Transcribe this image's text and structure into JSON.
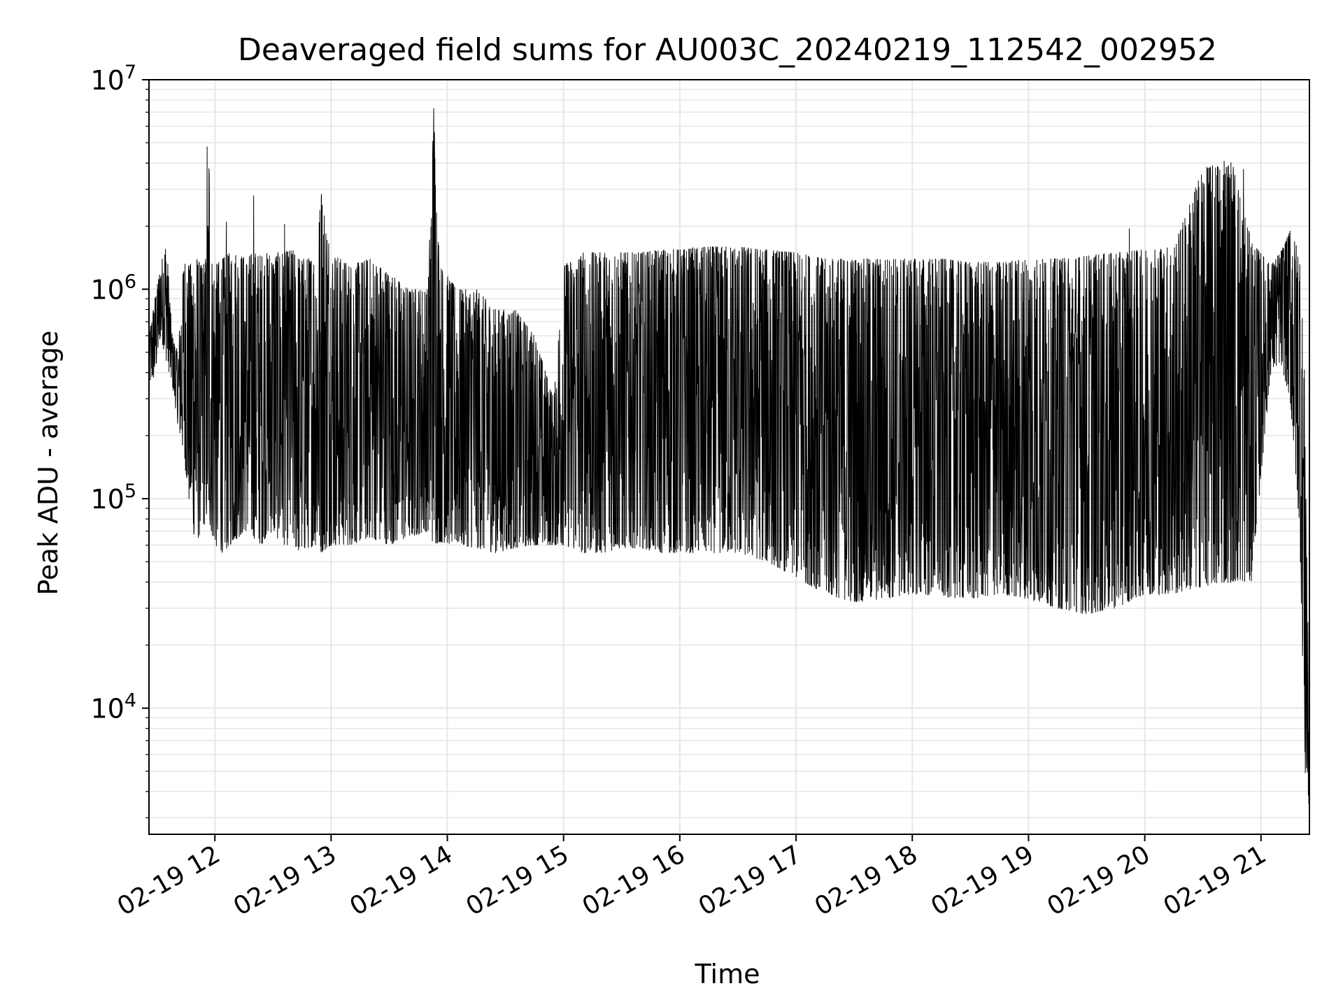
{
  "chart_data": {
    "type": "line",
    "title": "Deaveraged field sums for AU003C_20240219_112542_002952",
    "xlabel": "Time",
    "ylabel": "Peak ADU - average",
    "yscale": "log",
    "ylim": [
      2500,
      10000000
    ],
    "xlim": [
      "2024-02-19 11:26",
      "2024-02-19 21:25"
    ],
    "x_ticks": [
      {
        "t": "2024-02-19 12:00",
        "label": "02-19 12"
      },
      {
        "t": "2024-02-19 13:00",
        "label": "02-19 13"
      },
      {
        "t": "2024-02-19 14:00",
        "label": "02-19 14"
      },
      {
        "t": "2024-02-19 15:00",
        "label": "02-19 15"
      },
      {
        "t": "2024-02-19 16:00",
        "label": "02-19 16"
      },
      {
        "t": "2024-02-19 17:00",
        "label": "02-19 17"
      },
      {
        "t": "2024-02-19 18:00",
        "label": "02-19 18"
      },
      {
        "t": "2024-02-19 19:00",
        "label": "02-19 19"
      },
      {
        "t": "2024-02-19 20:00",
        "label": "02-19 20"
      },
      {
        "t": "2024-02-19 21:00",
        "label": "02-19 21"
      }
    ],
    "y_ticks": [
      {
        "v": 10000,
        "base": "10",
        "exp": "4"
      },
      {
        "v": 100000,
        "base": "10",
        "exp": "5"
      },
      {
        "v": 1000000,
        "base": "10",
        "exp": "6"
      },
      {
        "v": 10000000,
        "base": "10",
        "exp": "7"
      }
    ],
    "grid": true,
    "line_color": "#000000",
    "grid_color": "#e6e6e6",
    "series": [
      {
        "x": [
          "2024-02-19 11:26",
          "2024-02-19 11:29",
          "2024-02-19 11:32",
          "2024-02-19 11:35",
          "2024-02-19 11:38",
          "2024-02-19 11:41",
          "2024-02-19 11:44",
          "2024-02-19 11:47",
          "2024-02-19 11:50",
          "2024-02-19 11:53",
          "2024-02-19 11:56",
          "2024-02-19 11:57",
          "2024-02-19 11:58",
          "2024-02-19 12:00",
          "2024-02-19 12:04",
          "2024-02-19 12:08",
          "2024-02-19 12:12",
          "2024-02-19 12:16",
          "2024-02-19 12:20",
          "2024-02-19 12:24",
          "2024-02-19 12:28",
          "2024-02-19 12:32",
          "2024-02-19 12:36",
          "2024-02-19 12:40",
          "2024-02-19 12:44",
          "2024-02-19 12:48",
          "2024-02-19 12:52",
          "2024-02-19 12:55",
          "2024-02-19 13:00",
          "2024-02-19 13:10",
          "2024-02-19 13:20",
          "2024-02-19 13:30",
          "2024-02-19 13:40",
          "2024-02-19 13:50",
          "2024-02-19 13:53",
          "2024-02-19 13:56",
          "2024-02-19 14:05",
          "2024-02-19 14:15",
          "2024-02-19 14:25",
          "2024-02-19 14:35",
          "2024-02-19 14:45",
          "2024-02-19 14:55",
          "2024-02-19 15:00",
          "2024-02-19 15:10",
          "2024-02-19 15:20",
          "2024-02-19 15:30",
          "2024-02-19 15:40",
          "2024-02-19 15:50",
          "2024-02-19 16:00",
          "2024-02-19 16:15",
          "2024-02-19 16:30",
          "2024-02-19 16:45",
          "2024-02-19 17:00",
          "2024-02-19 17:15",
          "2024-02-19 17:30",
          "2024-02-19 17:45",
          "2024-02-19 18:00",
          "2024-02-19 18:15",
          "2024-02-19 18:30",
          "2024-02-19 18:45",
          "2024-02-19 19:00",
          "2024-02-19 19:15",
          "2024-02-19 19:30",
          "2024-02-19 19:45",
          "2024-02-19 20:00",
          "2024-02-19 20:15",
          "2024-02-19 20:30",
          "2024-02-19 20:45",
          "2024-02-19 20:55",
          "2024-02-19 21:05",
          "2024-02-19 21:10",
          "2024-02-19 21:15",
          "2024-02-19 21:20",
          "2024-02-19 21:23",
          "2024-02-19 21:25"
        ],
        "lo": [
          350000,
          380000,
          600000,
          450000,
          350000,
          220000,
          160000,
          90000,
          60000,
          70000,
          80000,
          75000,
          70000,
          60000,
          55000,
          60000,
          65000,
          70000,
          65000,
          60000,
          70000,
          65000,
          60000,
          60000,
          55000,
          58000,
          60000,
          55000,
          60000,
          60000,
          65000,
          60000,
          65000,
          70000,
          60000,
          62000,
          60000,
          58000,
          55000,
          58000,
          60000,
          60000,
          60000,
          55000,
          55000,
          58000,
          58000,
          55000,
          55000,
          55000,
          55000,
          50000,
          42000,
          35000,
          32000,
          33000,
          35000,
          34000,
          33000,
          35000,
          33000,
          30000,
          28000,
          30000,
          35000,
          35000,
          38000,
          40000,
          40000,
          400000,
          450000,
          300000,
          70000,
          4000,
          3300
        ],
        "hi": [
          600000,
          900000,
          1300000,
          1700000,
          600000,
          500000,
          1400000,
          1300000,
          1450000,
          1300000,
          1450000,
          4800000,
          1400000,
          1300000,
          1400000,
          1500000,
          1500000,
          1400000,
          1500000,
          1450000,
          1500000,
          1500000,
          1500000,
          1550000,
          1400000,
          1400000,
          1500000,
          2900000,
          1500000,
          1300000,
          1400000,
          1200000,
          1000000,
          1000000,
          7300000,
          1300000,
          1000000,
          1000000,
          800000,
          800000,
          600000,
          300000,
          1300000,
          1500000,
          1500000,
          1500000,
          1500000,
          1550000,
          1550000,
          1600000,
          1600000,
          1550000,
          1500000,
          1400000,
          1400000,
          1400000,
          1400000,
          1400000,
          1350000,
          1350000,
          1400000,
          1400000,
          1450000,
          1500000,
          1550000,
          1600000,
          3800000,
          4100000,
          1700000,
          1300000,
          1500000,
          1900000,
          1500000,
          300000,
          5000
        ],
        "spikes": [
          {
            "t": "2024-02-19 11:56",
            "v": 4800000
          },
          {
            "t": "2024-02-19 12:06",
            "v": 2100000
          },
          {
            "t": "2024-02-19 12:20",
            "v": 2800000
          },
          {
            "t": "2024-02-19 12:36",
            "v": 2050000
          },
          {
            "t": "2024-02-19 12:55",
            "v": 2850000
          },
          {
            "t": "2024-02-19 13:53",
            "v": 7300000
          },
          {
            "t": "2024-02-19 19:52",
            "v": 1950000
          },
          {
            "t": "2024-02-19 20:33",
            "v": 3800000
          },
          {
            "t": "2024-02-19 20:41",
            "v": 4100000
          },
          {
            "t": "2024-02-19 20:51",
            "v": 3750000
          },
          {
            "t": "2024-02-19 21:15",
            "v": 1900000
          }
        ]
      }
    ]
  }
}
